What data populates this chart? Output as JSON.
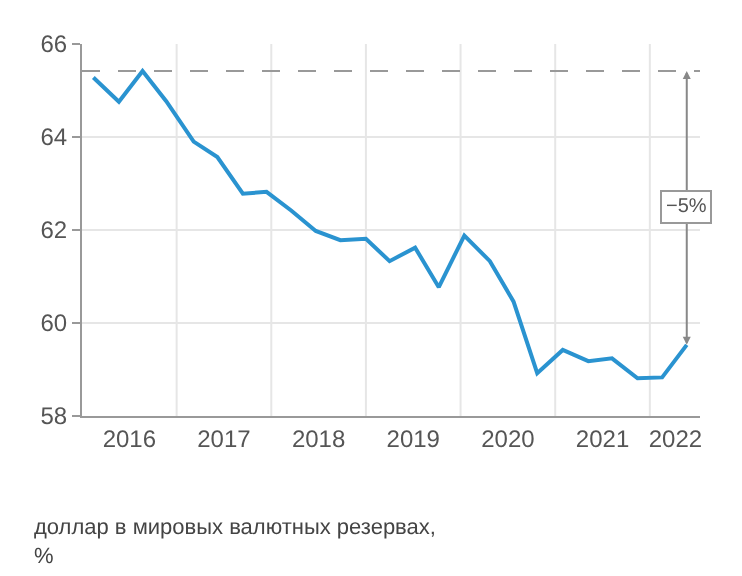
{
  "chart_data": {
    "type": "line",
    "ylabel": "доллар в мировых валютных резервах,\n%",
    "x": [
      2016.12,
      2016.39,
      2016.64,
      2016.89,
      2017.18,
      2017.43,
      2017.7,
      2017.95,
      2018.21,
      2018.47,
      2018.73,
      2019.0,
      2019.25,
      2019.52,
      2019.77,
      2020.04,
      2020.31,
      2020.56,
      2020.81,
      2021.08,
      2021.35,
      2021.6,
      2021.87,
      2022.13,
      2022.39
    ],
    "series": [
      {
        "color": "#2a93d0",
        "values": [
          65.28,
          64.76,
          65.42,
          64.77,
          63.9,
          63.57,
          62.78,
          62.82,
          62.42,
          61.98,
          61.78,
          61.81,
          61.33,
          61.62,
          60.77,
          61.88,
          61.33,
          60.46,
          58.92,
          59.42,
          59.18,
          59.24,
          58.81,
          58.83,
          59.53
        ]
      }
    ],
    "xlim": [
      2016,
      2022.53
    ],
    "xticks": [
      {
        "value": 2017,
        "label": null
      },
      {
        "value": 2018,
        "label": null
      },
      {
        "value": 2019,
        "label": null
      },
      {
        "value": 2020,
        "label": null
      },
      {
        "value": 2021,
        "label": null
      },
      {
        "value": 2022,
        "label": null
      },
      {
        "value": 2016.5,
        "label": "2016"
      },
      {
        "value": 2017.5,
        "label": "2017"
      },
      {
        "value": 2018.5,
        "label": "2018"
      },
      {
        "value": 2019.5,
        "label": "2019"
      },
      {
        "value": 2020.5,
        "label": "2020"
      },
      {
        "value": 2021.5,
        "label": "2021"
      },
      {
        "value": 2022.27,
        "label": "2022"
      }
    ],
    "ylim": [
      58,
      66
    ],
    "yticks": [
      58,
      60,
      62,
      64,
      66
    ],
    "ref_lines": [
      {
        "axis": "y",
        "value": 65.42,
        "label": null,
        "color": "#999999",
        "line_style": "dashed"
      }
    ],
    "annotations": [
      {
        "text": "−5%",
        "x": 2022.39,
        "y": 62.5
      }
    ],
    "grid": true,
    "marker": "none",
    "line_style": "solid"
  }
}
